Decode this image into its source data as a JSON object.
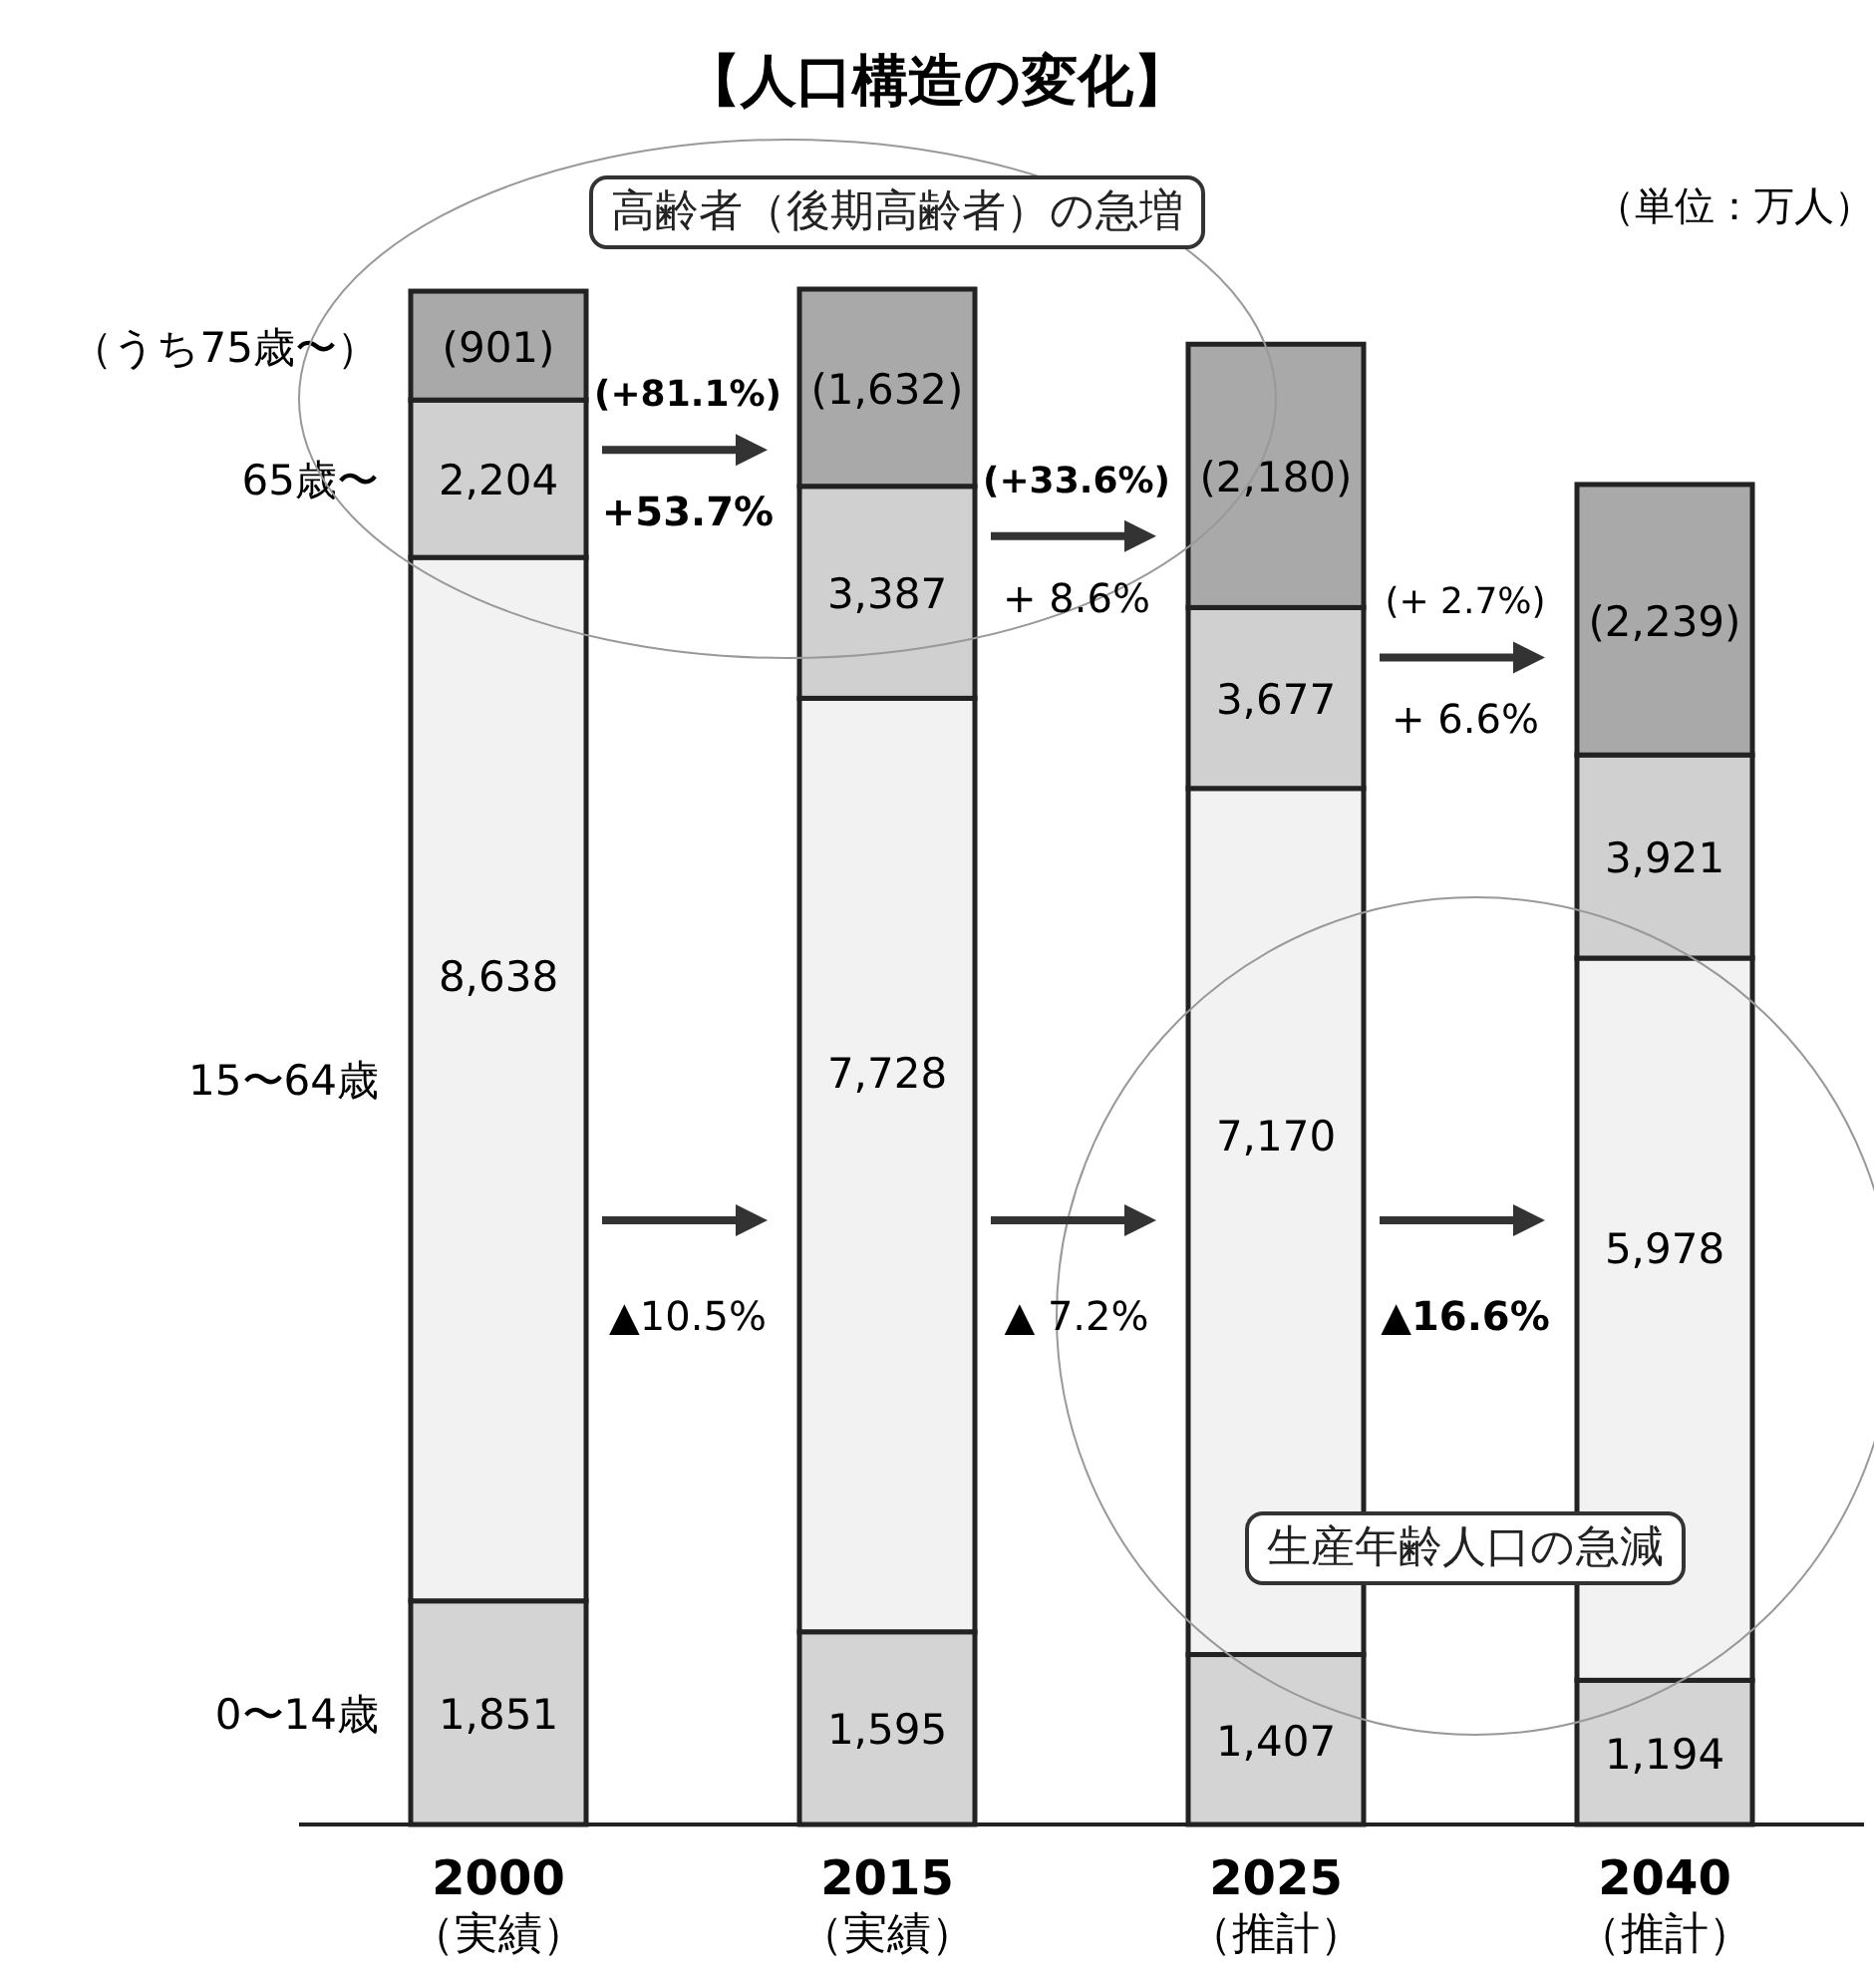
{
  "chart_data": {
    "type": "bar",
    "stacked": true,
    "title": "【人口構造の変化】",
    "categories": [
      "2000（実績）",
      "2015（実績）",
      "2025（推計）",
      "2040（推計）"
    ],
    "series": [
      {
        "name": "0〜14歳",
        "color": "#d4d4d4",
        "values": [
          1851,
          1595,
          1407,
          1194
        ],
        "value_labels": [
          "1,851",
          "1,595",
          "1,407",
          "1,194"
        ]
      },
      {
        "name": "15〜64歳",
        "color": "#f2f2f2",
        "values": [
          8638,
          7728,
          7170,
          5978
        ],
        "value_labels": [
          "8,638",
          "7,728",
          "7,170",
          "5,978"
        ]
      },
      {
        "name": "65歳〜",
        "color": "#d0d0d0",
        "values": [
          1303,
          1755,
          1497,
          1682
        ]
      },
      {
        "name": "（うち75歳〜）",
        "color": "#a9a9a9",
        "values": [
          901,
          1632,
          2180,
          2239
        ],
        "value_labels": [
          "(901)",
          "(1,632)",
          "(2,180)",
          "(2,239)"
        ]
      }
    ],
    "annotations": [
      "+53.7%",
      "(+81.1%)",
      "+ 8.6%",
      "(+33.6%)",
      "+ 6.6%",
      "(+ 2.7%)",
      "▲10.5%",
      "▲ 7.2%",
      "▲16.6%",
      "高齢者（後期高齢者）の急増",
      "生産年齢人口の急減",
      "（単位：万人）",
      "2,204",
      "3,387",
      "3,677",
      "3,921"
    ]
  }
}
